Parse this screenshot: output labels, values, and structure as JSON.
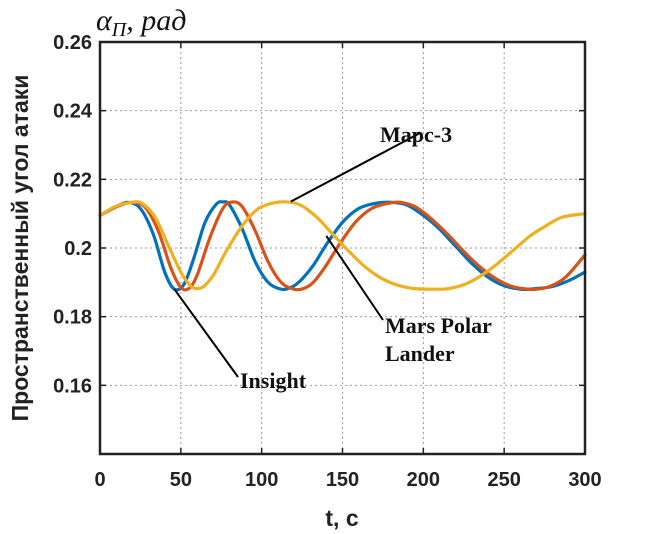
{
  "chart_data": {
    "type": "line",
    "title": "",
    "top_label": "α_П, рад",
    "top_label_main": "α",
    "top_label_sub": "П",
    "top_label_rest": ", рад",
    "xlabel": "t, c",
    "ylabel": "Пространственный угол атаки",
    "xlim": [
      0,
      300
    ],
    "ylim": [
      0.14,
      0.26
    ],
    "xticks": [
      0,
      50,
      100,
      150,
      200,
      250,
      300
    ],
    "xtick_labels": [
      "0",
      "50",
      "100",
      "150",
      "200",
      "250",
      "300"
    ],
    "yticks": [
      0.16,
      0.18,
      0.2,
      0.22,
      0.24,
      0.26
    ],
    "ytick_labels": [
      "0.16",
      "0.18",
      "0.2",
      "0.22",
      "0.24",
      "0.26"
    ],
    "grid": true,
    "series": [
      {
        "name": "Insight",
        "color": "#0072BD",
        "x": [
          0,
          10,
          17,
          25,
          33,
          40,
          46,
          52,
          58,
          65,
          72,
          76,
          80,
          88,
          96,
          104,
          112,
          118,
          124,
          132,
          140,
          150,
          160,
          170,
          180,
          190,
          200,
          210,
          220,
          230,
          240,
          250,
          260,
          265,
          270,
          280,
          290,
          300
        ],
        "y": [
          0.2095,
          0.212,
          0.2133,
          0.2115,
          0.204,
          0.193,
          0.188,
          0.1895,
          0.197,
          0.2075,
          0.2128,
          0.2134,
          0.2126,
          0.2055,
          0.196,
          0.19,
          0.188,
          0.1885,
          0.1905,
          0.195,
          0.201,
          0.2075,
          0.2115,
          0.213,
          0.2133,
          0.2125,
          0.2095,
          0.2055,
          0.2005,
          0.1955,
          0.1915,
          0.189,
          0.188,
          0.188,
          0.1882,
          0.1888,
          0.1905,
          0.193
        ]
      },
      {
        "name": "Mars Polar Lander",
        "color": "#D95319",
        "x": [
          0,
          10,
          20,
          28,
          36,
          44,
          50,
          55,
          60,
          68,
          76,
          82,
          88,
          96,
          104,
          112,
          120,
          126,
          132,
          140,
          148,
          158,
          168,
          178,
          186,
          195,
          205,
          215,
          225,
          235,
          245,
          255,
          265,
          270,
          278,
          288,
          300
        ],
        "y": [
          0.2095,
          0.212,
          0.2133,
          0.2118,
          0.205,
          0.194,
          0.1885,
          0.1882,
          0.192,
          0.203,
          0.2115,
          0.2134,
          0.212,
          0.205,
          0.196,
          0.19,
          0.188,
          0.1882,
          0.19,
          0.195,
          0.201,
          0.2075,
          0.2115,
          0.213,
          0.2133,
          0.212,
          0.2085,
          0.204,
          0.199,
          0.1945,
          0.191,
          0.1888,
          0.188,
          0.188,
          0.1888,
          0.1915,
          0.198
        ]
      },
      {
        "name": "Марс-3",
        "color": "#EDB120",
        "x": [
          0,
          10,
          20,
          26,
          34,
          42,
          50,
          56,
          60,
          64,
          70,
          78,
          88,
          98,
          108,
          116,
          124,
          134,
          144,
          154,
          164,
          174,
          184,
          194,
          204,
          210,
          216,
          226,
          236,
          246,
          256,
          266,
          276,
          286,
          300
        ],
        "y": [
          0.2095,
          0.2122,
          0.2133,
          0.213,
          0.209,
          0.201,
          0.193,
          0.189,
          0.1882,
          0.1888,
          0.192,
          0.199,
          0.2065,
          0.2115,
          0.2132,
          0.2134,
          0.2125,
          0.209,
          0.204,
          0.199,
          0.1945,
          0.1912,
          0.1892,
          0.1882,
          0.188,
          0.188,
          0.1882,
          0.1895,
          0.192,
          0.1955,
          0.1995,
          0.2035,
          0.2065,
          0.209,
          0.21
        ]
      }
    ],
    "annotations": [
      {
        "lines": [
          "Марс-3"
        ],
        "arrow_to": [
          118,
          0.2135
        ]
      },
      {
        "lines": [
          "Mars Polar",
          "Lander"
        ],
        "arrow_to": [
          140,
          0.2035
        ]
      },
      {
        "lines": [
          "Insight"
        ],
        "arrow_to": [
          46,
          0.188
        ]
      }
    ]
  }
}
